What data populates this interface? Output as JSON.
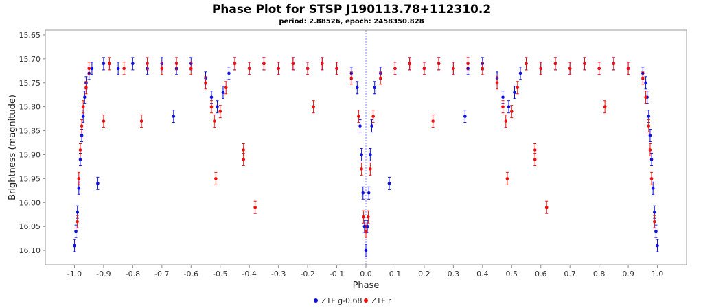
{
  "chart_data": {
    "type": "scatter",
    "title": "Phase Plot for STSP J190113.78+112310.2",
    "subtitle": "period: 2.88526, epoch: 2458350.828",
    "xlabel": "Phase",
    "ylabel": "Brightness (magnitude)",
    "xlim": [
      -1.1,
      1.1
    ],
    "ylim": [
      16.13,
      15.64
    ],
    "y_inverted": true,
    "x_ticks": [
      "-1.0",
      "-0.9",
      "-0.8",
      "-0.7",
      "-0.6",
      "-0.5",
      "-0.4",
      "-0.3",
      "-0.2",
      "-0.1",
      "0.0",
      "0.1",
      "0.2",
      "0.3",
      "0.4",
      "0.5",
      "0.6",
      "0.7",
      "0.8",
      "0.9",
      "1.0"
    ],
    "y_ticks": [
      "15.65",
      "15.70",
      "15.75",
      "15.80",
      "15.85",
      "15.90",
      "15.95",
      "16.00",
      "16.05",
      "16.10"
    ],
    "grid": false,
    "reference_line_x": 0.0,
    "legend_position": "bottom-center",
    "series": [
      {
        "name": "ZTF g-0.68",
        "color": "#1010e0",
        "points": [
          [
            -1.0,
            16.09
          ],
          [
            -0.995,
            16.06
          ],
          [
            -0.99,
            16.02
          ],
          [
            -0.985,
            15.97
          ],
          [
            -0.98,
            15.91
          ],
          [
            -0.975,
            15.86
          ],
          [
            -0.97,
            15.82
          ],
          [
            -0.965,
            15.78
          ],
          [
            -0.96,
            15.75
          ],
          [
            -0.95,
            15.73
          ],
          [
            -0.94,
            15.72
          ],
          [
            -0.92,
            15.96
          ],
          [
            -0.9,
            15.71
          ],
          [
            -0.85,
            15.72
          ],
          [
            -0.8,
            15.71
          ],
          [
            -0.75,
            15.72
          ],
          [
            -0.7,
            15.71
          ],
          [
            -0.66,
            15.82
          ],
          [
            -0.65,
            15.72
          ],
          [
            -0.6,
            15.71
          ],
          [
            -0.55,
            15.74
          ],
          [
            -0.53,
            15.78
          ],
          [
            -0.51,
            15.8
          ],
          [
            -0.49,
            15.77
          ],
          [
            -0.47,
            15.73
          ],
          [
            -0.45,
            15.71
          ],
          [
            -0.4,
            15.72
          ],
          [
            -0.35,
            15.71
          ],
          [
            -0.3,
            15.72
          ],
          [
            -0.25,
            15.71
          ],
          [
            -0.2,
            15.72
          ],
          [
            -0.15,
            15.71
          ],
          [
            -0.1,
            15.72
          ],
          [
            -0.05,
            15.73
          ],
          [
            -0.03,
            15.76
          ],
          [
            -0.02,
            15.84
          ],
          [
            -0.015,
            15.9
          ],
          [
            -0.01,
            15.98
          ],
          [
            -0.005,
            16.05
          ],
          [
            0.0,
            16.1
          ],
          [
            0.005,
            16.05
          ],
          [
            0.01,
            15.98
          ],
          [
            0.015,
            15.9
          ],
          [
            0.02,
            15.84
          ],
          [
            0.03,
            15.76
          ],
          [
            0.05,
            15.73
          ],
          [
            0.08,
            15.96
          ],
          [
            0.1,
            15.72
          ],
          [
            0.15,
            15.71
          ],
          [
            0.2,
            15.72
          ],
          [
            0.25,
            15.71
          ],
          [
            0.3,
            15.72
          ],
          [
            0.34,
            15.82
          ],
          [
            0.35,
            15.72
          ],
          [
            0.4,
            15.71
          ],
          [
            0.45,
            15.74
          ],
          [
            0.47,
            15.78
          ],
          [
            0.49,
            15.8
          ],
          [
            0.51,
            15.77
          ],
          [
            0.53,
            15.73
          ],
          [
            0.55,
            15.71
          ],
          [
            0.6,
            15.72
          ],
          [
            0.65,
            15.71
          ],
          [
            0.7,
            15.72
          ],
          [
            0.75,
            15.71
          ],
          [
            0.8,
            15.72
          ],
          [
            0.85,
            15.71
          ],
          [
            0.9,
            15.72
          ],
          [
            0.95,
            15.73
          ],
          [
            0.96,
            15.75
          ],
          [
            0.965,
            15.78
          ],
          [
            0.97,
            15.82
          ],
          [
            0.975,
            15.86
          ],
          [
            0.98,
            15.91
          ],
          [
            0.985,
            15.97
          ],
          [
            0.99,
            16.02
          ],
          [
            0.995,
            16.06
          ],
          [
            1.0,
            16.09
          ]
        ]
      },
      {
        "name": "ZTF r",
        "color": "#ee1010",
        "points": [
          [
            -0.99,
            16.04
          ],
          [
            -0.985,
            15.95
          ],
          [
            -0.98,
            15.89
          ],
          [
            -0.975,
            15.84
          ],
          [
            -0.97,
            15.8
          ],
          [
            -0.96,
            15.76
          ],
          [
            -0.95,
            15.72
          ],
          [
            -0.9,
            15.83
          ],
          [
            -0.88,
            15.71
          ],
          [
            -0.83,
            15.72
          ],
          [
            -0.77,
            15.83
          ],
          [
            -0.75,
            15.71
          ],
          [
            -0.7,
            15.72
          ],
          [
            -0.65,
            15.71
          ],
          [
            -0.6,
            15.72
          ],
          [
            -0.55,
            15.75
          ],
          [
            -0.53,
            15.8
          ],
          [
            -0.52,
            15.83
          ],
          [
            -0.515,
            15.95
          ],
          [
            -0.5,
            15.81
          ],
          [
            -0.48,
            15.76
          ],
          [
            -0.45,
            15.71
          ],
          [
            -0.42,
            15.89
          ],
          [
            -0.42,
            15.91
          ],
          [
            -0.4,
            15.72
          ],
          [
            -0.38,
            16.01
          ],
          [
            -0.35,
            15.71
          ],
          [
            -0.3,
            15.72
          ],
          [
            -0.25,
            15.71
          ],
          [
            -0.2,
            15.72
          ],
          [
            -0.18,
            15.8
          ],
          [
            -0.15,
            15.71
          ],
          [
            -0.1,
            15.72
          ],
          [
            -0.05,
            15.74
          ],
          [
            -0.025,
            15.82
          ],
          [
            -0.015,
            15.93
          ],
          [
            -0.008,
            16.03
          ],
          [
            0.0,
            16.06
          ],
          [
            0.008,
            16.03
          ],
          [
            0.015,
            15.93
          ],
          [
            0.025,
            15.82
          ],
          [
            0.05,
            15.74
          ],
          [
            0.1,
            15.72
          ],
          [
            0.15,
            15.71
          ],
          [
            0.2,
            15.72
          ],
          [
            0.23,
            15.83
          ],
          [
            0.25,
            15.71
          ],
          [
            0.3,
            15.72
          ],
          [
            0.35,
            15.71
          ],
          [
            0.4,
            15.72
          ],
          [
            0.45,
            15.75
          ],
          [
            0.47,
            15.8
          ],
          [
            0.48,
            15.83
          ],
          [
            0.485,
            15.95
          ],
          [
            0.5,
            15.81
          ],
          [
            0.52,
            15.76
          ],
          [
            0.55,
            15.71
          ],
          [
            0.58,
            15.89
          ],
          [
            0.58,
            15.91
          ],
          [
            0.6,
            15.72
          ],
          [
            0.62,
            16.01
          ],
          [
            0.65,
            15.71
          ],
          [
            0.7,
            15.72
          ],
          [
            0.75,
            15.71
          ],
          [
            0.8,
            15.72
          ],
          [
            0.82,
            15.8
          ],
          [
            0.85,
            15.71
          ],
          [
            0.9,
            15.72
          ],
          [
            0.95,
            15.74
          ],
          [
            0.96,
            15.78
          ],
          [
            0.97,
            15.84
          ],
          [
            0.975,
            15.89
          ],
          [
            0.98,
            15.95
          ],
          [
            0.99,
            16.04
          ]
        ]
      }
    ]
  }
}
